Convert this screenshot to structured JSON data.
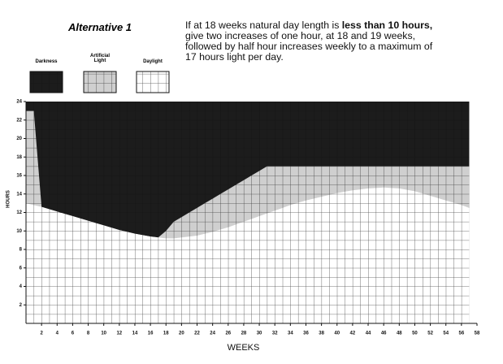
{
  "chart_data": {
    "type": "area",
    "title": "Alternative 1",
    "note_parts": [
      "If at 18 weeks natural day length is ",
      "less than 10 hours,",
      " give two increases of one hour, at 18 and 19 weeks, followed by half hour increases weekly to a maximum of 17 hours light per day."
    ],
    "x_label": "WEEKS",
    "y_label": "HOURS",
    "darkness": {
      "name": "Darkness",
      "color": "#1c1c1c"
    },
    "x": [
      0,
      1,
      2,
      3,
      4,
      5,
      6,
      7,
      8,
      9,
      10,
      11,
      12,
      13,
      14,
      15,
      16,
      17,
      18,
      19,
      20,
      21,
      22,
      23,
      24,
      25,
      26,
      27,
      28,
      29,
      30,
      31,
      32,
      33,
      34,
      35,
      36,
      37,
      38,
      39,
      40,
      41,
      42,
      43,
      44,
      45,
      46,
      47,
      48,
      49,
      50,
      51,
      52,
      53,
      54,
      55,
      56,
      57
    ],
    "series": [
      {
        "name": "Artificial Light",
        "color": "#cfcfcf",
        "values": [
          23,
          23,
          12.6,
          12.35,
          12.1,
          11.85,
          11.6,
          11.35,
          11.1,
          10.85,
          10.6,
          10.35,
          10.1,
          9.9,
          9.7,
          9.55,
          9.4,
          9.3,
          10,
          11,
          11.5,
          12,
          12.5,
          13,
          13.5,
          14,
          14.5,
          15,
          15.5,
          16,
          16.5,
          17,
          17,
          17,
          17,
          17,
          17,
          17,
          17,
          17,
          17,
          17,
          17,
          17,
          17,
          17,
          17,
          17,
          17,
          17,
          17,
          17,
          17,
          17,
          17,
          17,
          17,
          17
        ]
      },
      {
        "name": "Daylight",
        "color": "#ffffff",
        "values": [
          13,
          12.8,
          12.6,
          12.35,
          12.1,
          11.85,
          11.6,
          11.35,
          11.1,
          10.85,
          10.6,
          10.35,
          10.1,
          9.9,
          9.7,
          9.55,
          9.4,
          9.3,
          9.2,
          9.2,
          9.3,
          9.4,
          9.5,
          9.7,
          9.9,
          10.15,
          10.4,
          10.7,
          11,
          11.3,
          11.6,
          11.9,
          12.2,
          12.5,
          12.8,
          13.05,
          13.3,
          13.5,
          13.7,
          13.9,
          14.1,
          14.25,
          14.4,
          14.5,
          14.6,
          14.65,
          14.7,
          14.65,
          14.6,
          14.45,
          14.3,
          14.05,
          13.8,
          13.55,
          13.3,
          13.05,
          12.8,
          12.5
        ]
      }
    ],
    "xlim": [
      0,
      58
    ],
    "xticks": [
      2,
      4,
      6,
      8,
      10,
      12,
      14,
      16,
      18,
      20,
      22,
      24,
      26,
      28,
      30,
      32,
      34,
      36,
      38,
      40,
      42,
      44,
      46,
      48,
      50,
      52,
      54,
      56,
      58
    ],
    "ylim": [
      0,
      24
    ],
    "yticks": [
      2,
      4,
      6,
      8,
      10,
      12,
      14,
      16,
      18,
      20,
      22,
      24
    ]
  }
}
